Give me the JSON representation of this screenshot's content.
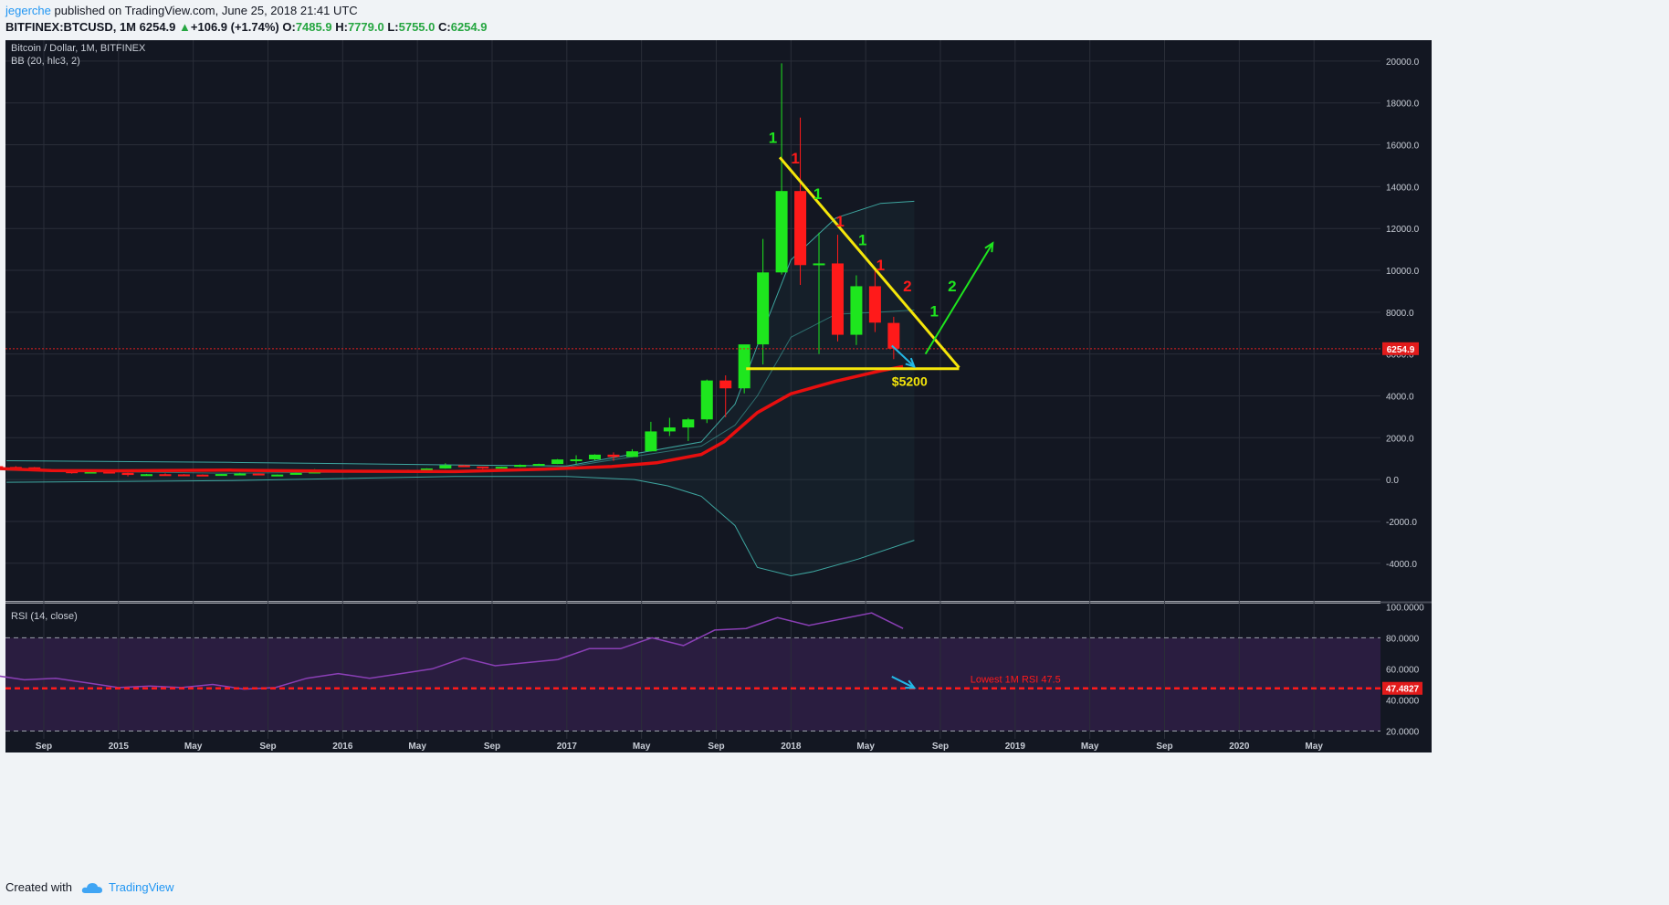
{
  "header": {
    "author": "jegerche",
    "published": "published on TradingView.com, June 25, 2018 21:41 UTC",
    "symbol": "BITFINEX:BTCUSD, 1M",
    "last": "6254.9",
    "change": "+106.9 (+1.74%)",
    "o_label": "O:",
    "o": "7485.9",
    "h_label": "H:",
    "h": "7779.0",
    "l_label": "L:",
    "l": "5755.0",
    "c_label": "C:",
    "c": "6254.9"
  },
  "footer": {
    "created_with": "Created with",
    "brand": "TradingView"
  },
  "colors": {
    "up": "#1ee61e",
    "down": "#ff1a1a",
    "bg": "#131722",
    "rsi_bg": "#2a1d40",
    "yellow": "#f5e60a",
    "ma": "#e80f0f",
    "bb": "#3ea6a0",
    "rsi": "#8a3fb5",
    "cyan": "#22b8e6"
  },
  "chart_data": [
    {
      "type": "candlestick",
      "title": "Bitcoin / Dollar, 1M, BITFINEX",
      "indicator": "BB (20, hlc3, 2)",
      "ylim": [
        -5800,
        21000
      ],
      "yticks": [
        "20000.0",
        "18000.0",
        "16000.0",
        "14000.0",
        "12000.0",
        "10000.0",
        "8000.0",
        "6000.0",
        "4000.0",
        "2000.0",
        "0.0",
        "-2000.0",
        "-4000.0"
      ],
      "xticks": [
        {
          "label": "Sep",
          "month": "2014-09"
        },
        {
          "label": "2015",
          "month": "2015-01"
        },
        {
          "label": "May",
          "month": "2015-05"
        },
        {
          "label": "Sep",
          "month": "2015-09"
        },
        {
          "label": "2016",
          "month": "2016-01"
        },
        {
          "label": "May",
          "month": "2016-05"
        },
        {
          "label": "Sep",
          "month": "2016-09"
        },
        {
          "label": "2017",
          "month": "2017-01"
        },
        {
          "label": "May",
          "month": "2017-05"
        },
        {
          "label": "Sep",
          "month": "2017-09"
        },
        {
          "label": "2018",
          "month": "2018-01"
        },
        {
          "label": "May",
          "month": "2018-05"
        },
        {
          "label": "Sep",
          "month": "2018-09"
        },
        {
          "label": "2019",
          "month": "2019-01"
        },
        {
          "label": "May",
          "month": "2019-05"
        },
        {
          "label": "Sep",
          "month": "2019-09"
        },
        {
          "label": "2020",
          "month": "2020-01"
        },
        {
          "label": "May",
          "month": "2020-05"
        }
      ],
      "candles": [
        {
          "date": "2014-06",
          "o": 640,
          "h": 680,
          "l": 540,
          "c": 600
        },
        {
          "date": "2014-07",
          "o": 600,
          "h": 640,
          "l": 560,
          "c": 585
        },
        {
          "date": "2014-08",
          "o": 585,
          "h": 600,
          "l": 440,
          "c": 480
        },
        {
          "date": "2014-09",
          "o": 480,
          "h": 490,
          "l": 370,
          "c": 390
        },
        {
          "date": "2014-10",
          "o": 390,
          "h": 420,
          "l": 280,
          "c": 340
        },
        {
          "date": "2014-11",
          "o": 340,
          "h": 460,
          "l": 320,
          "c": 375
        },
        {
          "date": "2014-12",
          "o": 375,
          "h": 400,
          "l": 300,
          "c": 320
        },
        {
          "date": "2015-01",
          "o": 320,
          "h": 330,
          "l": 150,
          "c": 220
        },
        {
          "date": "2015-02",
          "o": 220,
          "h": 270,
          "l": 200,
          "c": 255
        },
        {
          "date": "2015-03",
          "o": 255,
          "h": 300,
          "l": 240,
          "c": 245
        },
        {
          "date": "2015-04",
          "o": 245,
          "h": 260,
          "l": 210,
          "c": 235
        },
        {
          "date": "2015-05",
          "o": 235,
          "h": 250,
          "l": 225,
          "c": 230
        },
        {
          "date": "2015-06",
          "o": 230,
          "h": 265,
          "l": 215,
          "c": 263
        },
        {
          "date": "2015-07",
          "o": 263,
          "h": 320,
          "l": 255,
          "c": 285
        },
        {
          "date": "2015-08",
          "o": 285,
          "h": 290,
          "l": 200,
          "c": 230
        },
        {
          "date": "2015-09",
          "o": 230,
          "h": 245,
          "l": 225,
          "c": 237
        },
        {
          "date": "2015-10",
          "o": 237,
          "h": 330,
          "l": 235,
          "c": 314
        },
        {
          "date": "2015-11",
          "o": 314,
          "h": 500,
          "l": 300,
          "c": 378
        },
        {
          "date": "2015-12",
          "o": 378,
          "h": 470,
          "l": 345,
          "c": 430
        },
        {
          "date": "2016-01",
          "o": 430,
          "h": 460,
          "l": 350,
          "c": 370
        },
        {
          "date": "2016-02",
          "o": 370,
          "h": 450,
          "l": 360,
          "c": 437
        },
        {
          "date": "2016-03",
          "o": 437,
          "h": 440,
          "l": 400,
          "c": 416
        },
        {
          "date": "2016-04",
          "o": 416,
          "h": 470,
          "l": 412,
          "c": 450
        },
        {
          "date": "2016-05",
          "o": 450,
          "h": 540,
          "l": 440,
          "c": 530
        },
        {
          "date": "2016-06",
          "o": 530,
          "h": 780,
          "l": 520,
          "c": 680
        },
        {
          "date": "2016-07",
          "o": 680,
          "h": 700,
          "l": 600,
          "c": 625
        },
        {
          "date": "2016-08",
          "o": 625,
          "h": 620,
          "l": 500,
          "c": 575
        },
        {
          "date": "2016-09",
          "o": 575,
          "h": 620,
          "l": 580,
          "c": 610
        },
        {
          "date": "2016-10",
          "o": 610,
          "h": 720,
          "l": 600,
          "c": 700
        },
        {
          "date": "2016-11",
          "o": 700,
          "h": 760,
          "l": 690,
          "c": 745
        },
        {
          "date": "2016-12",
          "o": 745,
          "h": 980,
          "l": 740,
          "c": 960
        },
        {
          "date": "2017-01",
          "o": 960,
          "h": 1160,
          "l": 750,
          "c": 965
        },
        {
          "date": "2017-02",
          "o": 965,
          "h": 1210,
          "l": 920,
          "c": 1190
        },
        {
          "date": "2017-03",
          "o": 1190,
          "h": 1300,
          "l": 890,
          "c": 1080
        },
        {
          "date": "2017-04",
          "o": 1080,
          "h": 1450,
          "l": 1070,
          "c": 1350
        },
        {
          "date": "2017-05",
          "o": 1350,
          "h": 2760,
          "l": 1340,
          "c": 2300
        },
        {
          "date": "2017-06",
          "o": 2300,
          "h": 2950,
          "l": 2080,
          "c": 2490
        },
        {
          "date": "2017-07",
          "o": 2490,
          "h": 2940,
          "l": 1840,
          "c": 2875
        },
        {
          "date": "2017-08",
          "o": 2875,
          "h": 4780,
          "l": 2700,
          "c": 4735
        },
        {
          "date": "2017-09",
          "o": 4735,
          "h": 4980,
          "l": 2980,
          "c": 4360
        },
        {
          "date": "2017-10",
          "o": 4360,
          "h": 6450,
          "l": 4120,
          "c": 6460
        },
        {
          "date": "2017-11",
          "o": 6460,
          "h": 11500,
          "l": 5500,
          "c": 9900
        },
        {
          "date": "2017-12",
          "o": 9900,
          "h": 19890,
          "l": 9800,
          "c": 13790
        },
        {
          "date": "2018-01",
          "o": 13790,
          "h": 17300,
          "l": 9300,
          "c": 10250
        },
        {
          "date": "2018-02",
          "o": 10250,
          "h": 11800,
          "l": 6000,
          "c": 10330
        },
        {
          "date": "2018-03",
          "o": 10330,
          "h": 11700,
          "l": 6600,
          "c": 6920
        },
        {
          "date": "2018-04",
          "o": 6920,
          "h": 9760,
          "l": 6430,
          "c": 9240
        },
        {
          "date": "2018-05",
          "o": 9240,
          "h": 9990,
          "l": 7050,
          "c": 7500
        },
        {
          "date": "2018-06",
          "o": 7485.9,
          "h": 7779.0,
          "l": 5755.0,
          "c": 6254.9
        }
      ],
      "bb_upper": [
        [
          2014.5,
          900
        ],
        [
          2015.5,
          820
        ],
        [
          2016.5,
          700
        ],
        [
          2017.0,
          650
        ],
        [
          2017.6,
          1800
        ],
        [
          2017.75,
          3600
        ],
        [
          2017.85,
          6400
        ],
        [
          2018.0,
          10500
        ],
        [
          2018.2,
          12500
        ],
        [
          2018.4,
          13200
        ],
        [
          2018.55,
          13300
        ]
      ],
      "bb_middle": [
        [
          2014.5,
          440
        ],
        [
          2015.5,
          300
        ],
        [
          2016.5,
          400
        ],
        [
          2017.0,
          600
        ],
        [
          2017.6,
          1600
        ],
        [
          2017.75,
          2600
        ],
        [
          2017.85,
          4000
        ],
        [
          2018.0,
          6800
        ],
        [
          2018.2,
          7900
        ],
        [
          2018.4,
          8000
        ],
        [
          2018.55,
          8100
        ]
      ],
      "bb_lower": [
        [
          2014.5,
          -130
        ],
        [
          2015.5,
          -50
        ],
        [
          2016.5,
          150
        ],
        [
          2017.0,
          150
        ],
        [
          2017.3,
          0
        ],
        [
          2017.45,
          -300
        ],
        [
          2017.6,
          -800
        ],
        [
          2017.75,
          -2200
        ],
        [
          2017.85,
          -4200
        ],
        [
          2018.0,
          -4600
        ],
        [
          2018.1,
          -4400
        ],
        [
          2018.3,
          -3800
        ],
        [
          2018.55,
          -2900
        ]
      ],
      "ma": [
        [
          2014.3,
          600
        ],
        [
          2014.7,
          430
        ],
        [
          2015.0,
          420
        ],
        [
          2015.5,
          450
        ],
        [
          2016.0,
          400
        ],
        [
          2016.5,
          380
        ],
        [
          2016.9,
          500
        ],
        [
          2017.2,
          620
        ],
        [
          2017.4,
          800
        ],
        [
          2017.6,
          1200
        ],
        [
          2017.7,
          1800
        ],
        [
          2017.85,
          3200
        ],
        [
          2018.0,
          4100
        ],
        [
          2018.2,
          4700
        ],
        [
          2018.4,
          5200
        ],
        [
          2018.5,
          5400
        ]
      ],
      "current_price": 6254.9,
      "current_price_label": "6254.9",
      "trendline": [
        [
          2017.95,
          15400
        ],
        [
          2018.75,
          5350
        ]
      ],
      "support": [
        [
          2017.8,
          5300
        ],
        [
          2018.75,
          5300
        ]
      ],
      "support_label": "$5200",
      "counts": [
        {
          "text": "1",
          "color": "up",
          "x": 2017.9,
          "y": 16100
        },
        {
          "text": "1",
          "color": "down",
          "x": 2018.0,
          "y": 15100
        },
        {
          "text": "1",
          "color": "up",
          "x": 2018.1,
          "y": 13400
        },
        {
          "text": "1",
          "color": "down",
          "x": 2018.2,
          "y": 12100
        },
        {
          "text": "1",
          "color": "up",
          "x": 2018.3,
          "y": 11200
        },
        {
          "text": "1",
          "color": "down",
          "x": 2018.38,
          "y": 10000
        },
        {
          "text": "2",
          "color": "down",
          "x": 2018.5,
          "y": 9000
        },
        {
          "text": "2",
          "color": "up",
          "x": 2018.7,
          "y": 9000
        },
        {
          "text": "1",
          "color": "up",
          "x": 2018.62,
          "y": 7800
        }
      ],
      "arrow_up": [
        [
          2018.6,
          6000
        ],
        [
          2018.9,
          11300
        ]
      ],
      "arrow_down": [
        [
          2018.45,
          6400
        ],
        [
          2018.55,
          5400
        ]
      ]
    },
    {
      "type": "line",
      "title": "RSI (14, close)",
      "ylim": [
        15,
        102
      ],
      "yticks": [
        "100.0000",
        "80.0000",
        "60.0000",
        "40.0000",
        "20.0000"
      ],
      "levels": [
        80,
        20
      ],
      "lowest_label": "Lowest 1M RSI 47.5",
      "current": 47.4827,
      "current_label": "47.4827",
      "values": [
        [
          2014.3,
          59
        ],
        [
          2014.5,
          56
        ],
        [
          2014.7,
          53
        ],
        [
          2014.85,
          54
        ],
        [
          2015.0,
          51
        ],
        [
          2015.2,
          48
        ],
        [
          2015.4,
          49
        ],
        [
          2015.6,
          48
        ],
        [
          2015.8,
          50
        ],
        [
          2016.0,
          47
        ],
        [
          2016.1,
          48
        ],
        [
          2016.3,
          54
        ],
        [
          2016.45,
          57
        ],
        [
          2016.55,
          54
        ],
        [
          2016.7,
          57
        ],
        [
          2016.9,
          60
        ],
        [
          2017.1,
          67
        ],
        [
          2017.3,
          62
        ],
        [
          2017.45,
          64
        ],
        [
          2017.55,
          66
        ],
        [
          2017.7,
          73
        ],
        [
          2017.8,
          73
        ],
        [
          2017.95,
          80
        ],
        [
          2018.05,
          75
        ],
        [
          2018.15,
          85
        ],
        [
          2018.25,
          86
        ],
        [
          2018.45,
          93
        ],
        [
          2018.55,
          88
        ],
        [
          2018.65,
          92
        ],
        [
          2018.8,
          96
        ],
        [
          2018.9,
          86
        ],
        [
          2017.9,
          0
        ]
      ]
    }
  ]
}
